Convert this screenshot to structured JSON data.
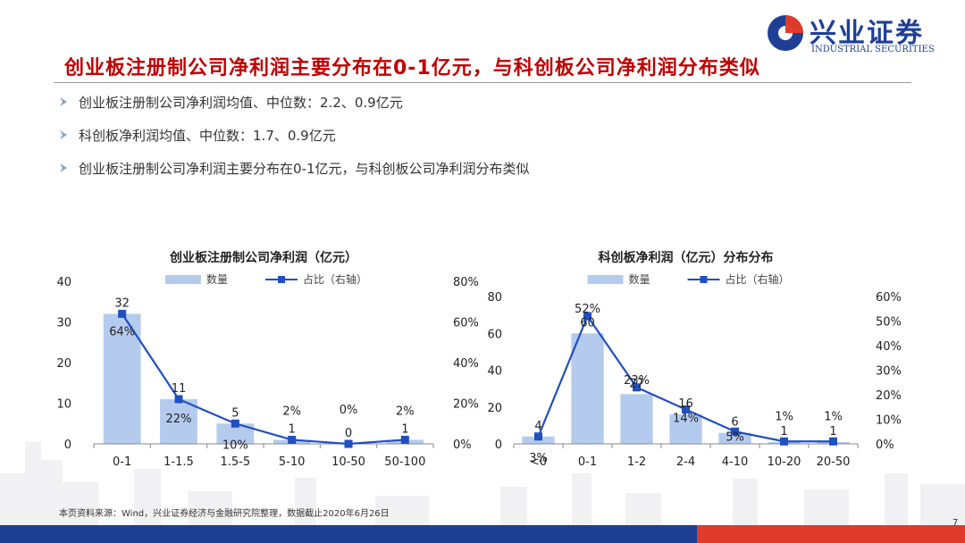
{
  "header": {
    "title": "创业板注册制公司净利润主要分布在0-1亿元，与科创板公司净利润分布类似",
    "logo_cn": "兴业证券",
    "logo_en": "INDUSTRIAL SECURITIES"
  },
  "bullets": [
    "创业板注册制公司净利润均值、中位数：2.2、0.9亿元",
    "科创板净利润均值、中位数：1.7、0.9亿元",
    "创业板注册制公司净利润主要分布在0-1亿元，与科创板公司净利润分布类似"
  ],
  "footer": {
    "source": "本页资料来源：Wind，兴业证券经济与金融研究院整理，数据截止2020年6月26日",
    "page": "7"
  },
  "colors": {
    "bar": "#b4cbee",
    "line": "#1f4fc0",
    "title_red": "#c00000",
    "brand_blue": "#1f3f95",
    "brand_red": "#e03a2a"
  },
  "chart_data": [
    {
      "type": "bar",
      "title": "创业板注册制公司净利润（亿元）",
      "categories": [
        "0-1",
        "1-1.5",
        "1.5-5",
        "5-10",
        "10-50",
        "50-100"
      ],
      "series": [
        {
          "name": "数量",
          "type": "bar",
          "axis": "left",
          "values": [
            32,
            11,
            5,
            1,
            0,
            1
          ],
          "labels": [
            "32",
            "11",
            "5",
            "1",
            "0",
            "1"
          ]
        },
        {
          "name": "占比（右轴）",
          "type": "line",
          "axis": "right",
          "values": [
            0.64,
            0.22,
            0.1,
            0.02,
            0.0,
            0.02
          ],
          "labels": [
            "64%",
            "22%",
            "10%",
            "2%",
            "0%",
            "2%"
          ]
        }
      ],
      "ylim_left": [
        0,
        40
      ],
      "yticks_left": [
        "0",
        "10",
        "20",
        "30",
        "40"
      ],
      "ylim_right": [
        0,
        0.8
      ],
      "yticks_right": [
        "0%",
        "20%",
        "40%",
        "60%",
        "80%"
      ],
      "legend": "top-center",
      "grid": false
    },
    {
      "type": "bar",
      "title": "科创板净利润（亿元）分布分布",
      "categories": [
        "<0",
        "0-1",
        "1-2",
        "2-4",
        "4-10",
        "10-20",
        "20-50"
      ],
      "series": [
        {
          "name": "数量",
          "type": "bar",
          "axis": "left",
          "values": [
            4,
            60,
            27,
            16,
            6,
            1,
            1
          ],
          "labels": [
            "4",
            "60",
            "27",
            "16",
            "6",
            "1",
            "1"
          ]
        },
        {
          "name": "占比（右轴）",
          "type": "line",
          "axis": "right",
          "values": [
            0.03,
            0.52,
            0.23,
            0.14,
            0.05,
            0.01,
            0.01
          ],
          "labels": [
            "3%",
            "52%",
            "23%",
            "14%",
            "5%",
            "1%",
            "1%"
          ]
        }
      ],
      "ylim_left": [
        0,
        80
      ],
      "yticks_left": [
        "0",
        "20",
        "40",
        "60",
        "80"
      ],
      "ylim_right": [
        0,
        0.6
      ],
      "yticks_right": [
        "0%",
        "10%",
        "20%",
        "30%",
        "40%",
        "50%",
        "60%"
      ],
      "legend": "top-center",
      "grid": false
    }
  ]
}
